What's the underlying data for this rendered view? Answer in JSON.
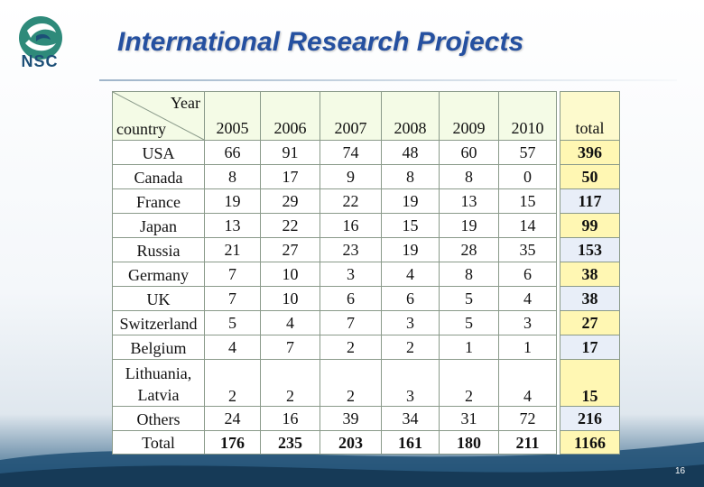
{
  "slide": {
    "title": "International Research Projects",
    "logo_text": "NSC",
    "page_number": "16"
  },
  "table": {
    "corner_year": "Year",
    "corner_country": "country",
    "years": [
      "2005",
      "2006",
      "2007",
      "2008",
      "2009",
      "2010"
    ],
    "total_header": "total",
    "rows": [
      {
        "country": "USA",
        "values": [
          "66",
          "91",
          "74",
          "48",
          "60",
          "57"
        ],
        "total": "396",
        "total_color": "yellow"
      },
      {
        "country": "Canada",
        "values": [
          "8",
          "17",
          "9",
          "8",
          "8",
          "0"
        ],
        "total": "50",
        "total_color": "yellow"
      },
      {
        "country": "France",
        "values": [
          "19",
          "29",
          "22",
          "19",
          "13",
          "15"
        ],
        "total": "117",
        "total_color": "blue"
      },
      {
        "country": "Japan",
        "values": [
          "13",
          "22",
          "16",
          "15",
          "19",
          "14"
        ],
        "total": "99",
        "total_color": "yellow"
      },
      {
        "country": "Russia",
        "values": [
          "21",
          "27",
          "23",
          "19",
          "28",
          "35"
        ],
        "total": "153",
        "total_color": "blue"
      },
      {
        "country": "Germany",
        "values": [
          "7",
          "10",
          "3",
          "4",
          "8",
          "6"
        ],
        "total": "38",
        "total_color": "yellow"
      },
      {
        "country": "UK",
        "values": [
          "7",
          "10",
          "6",
          "6",
          "5",
          "4"
        ],
        "total": "38",
        "total_color": "blue"
      },
      {
        "country": "Switzerland",
        "values": [
          "5",
          "4",
          "7",
          "3",
          "5",
          "3"
        ],
        "total": "27",
        "total_color": "yellow"
      },
      {
        "country": "Belgium",
        "values": [
          "4",
          "7",
          "2",
          "2",
          "1",
          "1"
        ],
        "total": "17",
        "total_color": "blue"
      },
      {
        "country": "Lithuania,\nLatvia",
        "values": [
          "2",
          "2",
          "2",
          "3",
          "2",
          "4"
        ],
        "total": "15",
        "total_color": "yellow",
        "tall": true
      },
      {
        "country": "Others",
        "values": [
          "24",
          "16",
          "39",
          "34",
          "31",
          "72"
        ],
        "total": "216",
        "total_color": "blue"
      }
    ],
    "total_row": {
      "label": "Total",
      "values": [
        "176",
        "235",
        "203",
        "161",
        "180",
        "211"
      ],
      "total": "1166"
    }
  }
}
